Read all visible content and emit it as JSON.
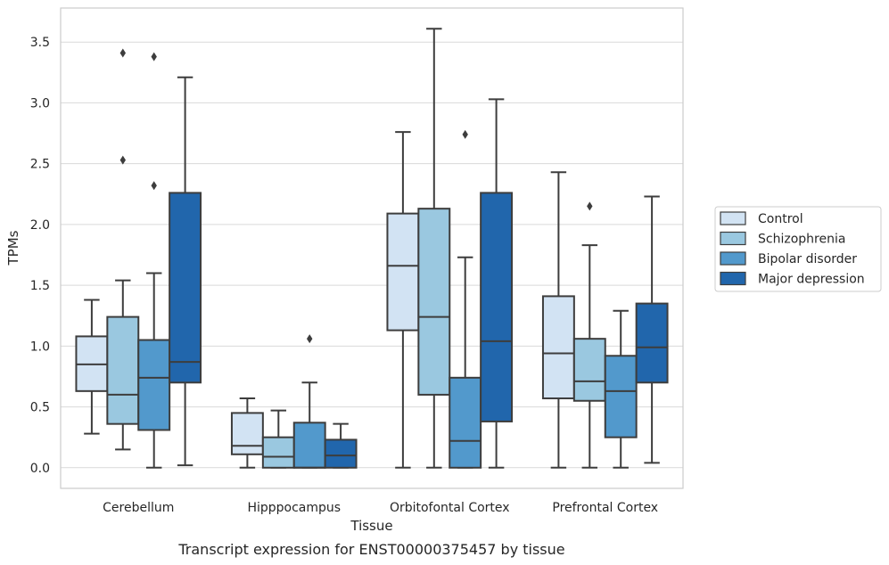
{
  "caption": "Transcript expression for ENST00000375457 by tissue",
  "chart_data": {
    "type": "box",
    "xlabel": "Tissue",
    "ylabel": "TPMs",
    "ylim": [
      -0.17,
      3.78
    ],
    "yticks": [
      0.0,
      0.5,
      1.0,
      1.5,
      2.0,
      2.5,
      3.0,
      3.5
    ],
    "ytick_labels": [
      "0.0",
      "0.5",
      "1.0",
      "1.5",
      "2.0",
      "2.5",
      "3.0",
      "3.5"
    ],
    "grid": "horizontal",
    "legend_position": "right",
    "categories": [
      "Cerebellum",
      "Hipppocampus",
      "Orbitofontal Cortex",
      "Prefrontal Cortex"
    ],
    "series": [
      {
        "name": "Control",
        "color": "#d2e3f3",
        "boxes": [
          {
            "whisker_low": 0.28,
            "q1": 0.63,
            "median": 0.85,
            "q3": 1.08,
            "whisker_high": 1.38,
            "outliers": []
          },
          {
            "whisker_low": 0.0,
            "q1": 0.11,
            "median": 0.18,
            "q3": 0.45,
            "whisker_high": 0.57,
            "outliers": []
          },
          {
            "whisker_low": 0.0,
            "q1": 1.13,
            "median": 1.66,
            "q3": 2.09,
            "whisker_high": 2.76,
            "outliers": []
          },
          {
            "whisker_low": 0.0,
            "q1": 0.57,
            "median": 0.94,
            "q3": 1.41,
            "whisker_high": 2.43,
            "outliers": []
          }
        ]
      },
      {
        "name": "Schizophrenia",
        "color": "#9ac8e0",
        "boxes": [
          {
            "whisker_low": 0.15,
            "q1": 0.36,
            "median": 0.6,
            "q3": 1.24,
            "whisker_high": 1.54,
            "outliers": [
              2.53,
              3.41
            ]
          },
          {
            "whisker_low": 0.0,
            "q1": 0.0,
            "median": 0.09,
            "q3": 0.25,
            "whisker_high": 0.47,
            "outliers": []
          },
          {
            "whisker_low": 0.0,
            "q1": 0.6,
            "median": 1.24,
            "q3": 2.13,
            "whisker_high": 3.61,
            "outliers": []
          },
          {
            "whisker_low": 0.0,
            "q1": 0.55,
            "median": 0.71,
            "q3": 1.06,
            "whisker_high": 1.83,
            "outliers": [
              2.15
            ]
          }
        ]
      },
      {
        "name": "Bipolar disorder",
        "color": "#5299cc",
        "boxes": [
          {
            "whisker_low": 0.0,
            "q1": 0.31,
            "median": 0.74,
            "q3": 1.05,
            "whisker_high": 1.6,
            "outliers": [
              2.32,
              3.38
            ]
          },
          {
            "whisker_low": 0.0,
            "q1": 0.0,
            "median": 0.0,
            "q3": 0.37,
            "whisker_high": 0.7,
            "outliers": [
              1.06
            ]
          },
          {
            "whisker_low": 0.0,
            "q1": 0.0,
            "median": 0.22,
            "q3": 0.74,
            "whisker_high": 1.73,
            "outliers": [
              2.74
            ]
          },
          {
            "whisker_low": 0.0,
            "q1": 0.25,
            "median": 0.63,
            "q3": 0.92,
            "whisker_high": 1.29,
            "outliers": []
          }
        ]
      },
      {
        "name": "Major depression",
        "color": "#2166ac",
        "boxes": [
          {
            "whisker_low": 0.02,
            "q1": 0.7,
            "median": 0.87,
            "q3": 2.26,
            "whisker_high": 3.21,
            "outliers": []
          },
          {
            "whisker_low": 0.0,
            "q1": 0.0,
            "median": 0.1,
            "q3": 0.23,
            "whisker_high": 0.36,
            "outliers": []
          },
          {
            "whisker_low": 0.0,
            "q1": 0.38,
            "median": 1.04,
            "q3": 2.26,
            "whisker_high": 3.03,
            "outliers": []
          },
          {
            "whisker_low": 0.04,
            "q1": 0.7,
            "median": 0.99,
            "q3": 1.35,
            "whisker_high": 2.23,
            "outliers": []
          }
        ]
      }
    ]
  }
}
